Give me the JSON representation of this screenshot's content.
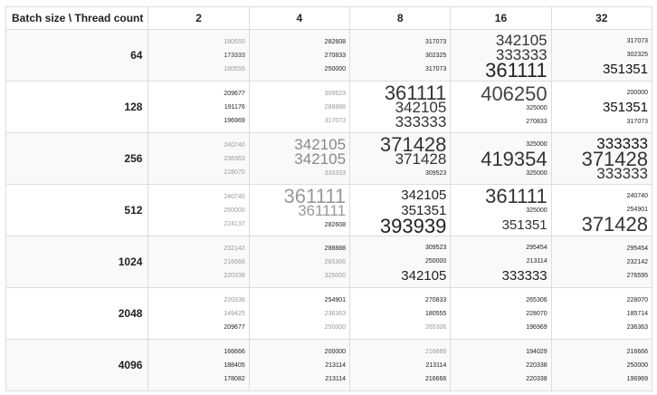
{
  "header": {
    "corner": "Batch size \\ Thread count",
    "columns": [
      "2",
      "4",
      "8",
      "16",
      "32"
    ]
  },
  "rows": [
    {
      "label": "64",
      "cells": [
        [
          {
            "v": "180555",
            "size": "xs",
            "color": "#999999"
          },
          {
            "v": "173333",
            "size": "xs",
            "color": "#333333"
          },
          {
            "v": "180555",
            "size": "xs",
            "color": "#999999"
          }
        ],
        [
          {
            "v": "282608",
            "size": "xs",
            "color": "#222222"
          },
          {
            "v": "270833",
            "size": "xs",
            "color": "#222222"
          },
          {
            "v": "250000",
            "size": "xs",
            "color": "#222222"
          }
        ],
        [
          {
            "v": "317073",
            "size": "xs",
            "color": "#222222"
          },
          {
            "v": "302325",
            "size": "xs",
            "color": "#222222"
          },
          {
            "v": "317073",
            "size": "xs",
            "color": "#222222"
          }
        ],
        [
          {
            "v": "342105",
            "size": "l",
            "color": "#333333"
          },
          {
            "v": "333333",
            "size": "l",
            "color": "#333333"
          },
          {
            "v": "361111",
            "size": "xl",
            "color": "#222222"
          }
        ],
        [
          {
            "v": "317073",
            "size": "xs",
            "color": "#222222"
          },
          {
            "v": "302325",
            "size": "xs",
            "color": "#222222"
          },
          {
            "v": "351351",
            "size": "m",
            "color": "#111111"
          }
        ]
      ]
    },
    {
      "label": "128",
      "cells": [
        [
          {
            "v": "209677",
            "size": "xs",
            "color": "#222222"
          },
          {
            "v": "191176",
            "size": "xs",
            "color": "#222222"
          },
          {
            "v": "196969",
            "size": "xs",
            "color": "#222222"
          }
        ],
        [
          {
            "v": "309523",
            "size": "xs",
            "color": "#999999"
          },
          {
            "v": "288888",
            "size": "xs",
            "color": "#999999"
          },
          {
            "v": "317073",
            "size": "xs",
            "color": "#999999"
          }
        ],
        [
          {
            "v": "361111",
            "size": "xl",
            "color": "#333333"
          },
          {
            "v": "342105",
            "size": "l",
            "color": "#333333"
          },
          {
            "v": "333333",
            "size": "l",
            "color": "#333333"
          }
        ],
        [
          {
            "v": "406250",
            "size": "xl",
            "color": "#444444"
          },
          {
            "v": "325000",
            "size": "xs",
            "color": "#222222"
          },
          {
            "v": "270833",
            "size": "xs",
            "color": "#222222"
          }
        ],
        [
          {
            "v": "200000",
            "size": "xs",
            "color": "#222222"
          },
          {
            "v": "351351",
            "size": "m",
            "color": "#111111"
          },
          {
            "v": "317073",
            "size": "xs",
            "color": "#222222"
          }
        ]
      ]
    },
    {
      "label": "256",
      "cells": [
        [
          {
            "v": "240740",
            "size": "xs",
            "color": "#999999"
          },
          {
            "v": "236363",
            "size": "xs",
            "color": "#999999"
          },
          {
            "v": "228070",
            "size": "xs",
            "color": "#999999"
          }
        ],
        [
          {
            "v": "342105",
            "size": "l",
            "color": "#888888"
          },
          {
            "v": "342105",
            "size": "l",
            "color": "#888888"
          },
          {
            "v": "333333",
            "size": "xs",
            "color": "#999999"
          }
        ],
        [
          {
            "v": "371428",
            "size": "xl",
            "color": "#333333"
          },
          {
            "v": "371428",
            "size": "l",
            "color": "#333333"
          },
          {
            "v": "309523",
            "size": "xs",
            "color": "#222222"
          }
        ],
        [
          {
            "v": "325000",
            "size": "xs",
            "color": "#222222"
          },
          {
            "v": "419354",
            "size": "xl",
            "color": "#333333"
          },
          {
            "v": "325000",
            "size": "xs",
            "color": "#222222"
          }
        ],
        [
          {
            "v": "333333",
            "size": "l",
            "color": "#111111"
          },
          {
            "v": "371428",
            "size": "xl",
            "color": "#333333"
          },
          {
            "v": "333333",
            "size": "l",
            "color": "#333333"
          }
        ]
      ]
    },
    {
      "label": "512",
      "cells": [
        [
          {
            "v": "240740",
            "size": "xs",
            "color": "#999999"
          },
          {
            "v": "250000",
            "size": "xs",
            "color": "#999999"
          },
          {
            "v": "224137",
            "size": "xs",
            "color": "#999999"
          }
        ],
        [
          {
            "v": "361111",
            "size": "xl",
            "color": "#999999"
          },
          {
            "v": "361111",
            "size": "l",
            "color": "#999999"
          },
          {
            "v": "282608",
            "size": "xs",
            "color": "#222222"
          }
        ],
        [
          {
            "v": "342105",
            "size": "m",
            "color": "#222222"
          },
          {
            "v": "351351",
            "size": "m",
            "color": "#222222"
          },
          {
            "v": "393939",
            "size": "xl",
            "color": "#222222"
          }
        ],
        [
          {
            "v": "361111",
            "size": "xl",
            "color": "#333333"
          },
          {
            "v": "325000",
            "size": "xs",
            "color": "#222222"
          },
          {
            "v": "351351",
            "size": "m",
            "color": "#333333"
          }
        ],
        [
          {
            "v": "240740",
            "size": "xs",
            "color": "#222222"
          },
          {
            "v": "254901",
            "size": "xs",
            "color": "#222222"
          },
          {
            "v": "371428",
            "size": "xl",
            "color": "#333333"
          }
        ]
      ]
    },
    {
      "label": "1024",
      "cells": [
        [
          {
            "v": "232142",
            "size": "xs",
            "color": "#999999"
          },
          {
            "v": "216666",
            "size": "xs",
            "color": "#999999"
          },
          {
            "v": "220338",
            "size": "xs",
            "color": "#999999"
          }
        ],
        [
          {
            "v": "288888",
            "size": "xs",
            "color": "#222222"
          },
          {
            "v": "265306",
            "size": "xs",
            "color": "#999999"
          },
          {
            "v": "325000",
            "size": "xs",
            "color": "#999999"
          }
        ],
        [
          {
            "v": "309523",
            "size": "xs",
            "color": "#222222"
          },
          {
            "v": "250000",
            "size": "xs",
            "color": "#222222"
          },
          {
            "v": "342105",
            "size": "m",
            "color": "#222222"
          }
        ],
        [
          {
            "v": "295454",
            "size": "xs",
            "color": "#222222"
          },
          {
            "v": "213114",
            "size": "xs",
            "color": "#222222"
          },
          {
            "v": "333333",
            "size": "m",
            "color": "#222222"
          }
        ],
        [
          {
            "v": "295454",
            "size": "xs",
            "color": "#222222"
          },
          {
            "v": "232142",
            "size": "xs",
            "color": "#222222"
          },
          {
            "v": "276595",
            "size": "xs",
            "color": "#222222"
          }
        ]
      ]
    },
    {
      "label": "2048",
      "cells": [
        [
          {
            "v": "220338",
            "size": "xs",
            "color": "#999999"
          },
          {
            "v": "149425",
            "size": "xs",
            "color": "#999999"
          },
          {
            "v": "209677",
            "size": "xs",
            "color": "#222222"
          }
        ],
        [
          {
            "v": "254901",
            "size": "xs",
            "color": "#222222"
          },
          {
            "v": "236363",
            "size": "xs",
            "color": "#999999"
          },
          {
            "v": "250000",
            "size": "xs",
            "color": "#999999"
          }
        ],
        [
          {
            "v": "270833",
            "size": "xs",
            "color": "#222222"
          },
          {
            "v": "180555",
            "size": "xs",
            "color": "#222222"
          },
          {
            "v": "265306",
            "size": "xs",
            "color": "#999999"
          }
        ],
        [
          {
            "v": "265306",
            "size": "xs",
            "color": "#222222"
          },
          {
            "v": "228070",
            "size": "xs",
            "color": "#222222"
          },
          {
            "v": "196969",
            "size": "xs",
            "color": "#222222"
          }
        ],
        [
          {
            "v": "228070",
            "size": "xs",
            "color": "#222222"
          },
          {
            "v": "185714",
            "size": "xs",
            "color": "#222222"
          },
          {
            "v": "236363",
            "size": "xs",
            "color": "#222222"
          }
        ]
      ]
    },
    {
      "label": "4096",
      "cells": [
        [
          {
            "v": "166666",
            "size": "xs",
            "color": "#222222"
          },
          {
            "v": "188405",
            "size": "xs",
            "color": "#222222"
          },
          {
            "v": "178082",
            "size": "xs",
            "color": "#222222"
          }
        ],
        [
          {
            "v": "200000",
            "size": "xs",
            "color": "#222222"
          },
          {
            "v": "213114",
            "size": "xs",
            "color": "#222222"
          },
          {
            "v": "213114",
            "size": "xs",
            "color": "#222222"
          }
        ],
        [
          {
            "v": "216666",
            "size": "xs",
            "color": "#999999"
          },
          {
            "v": "213114",
            "size": "xs",
            "color": "#222222"
          },
          {
            "v": "216666",
            "size": "xs",
            "color": "#222222"
          }
        ],
        [
          {
            "v": "194029",
            "size": "xs",
            "color": "#222222"
          },
          {
            "v": "220338",
            "size": "xs",
            "color": "#222222"
          },
          {
            "v": "220338",
            "size": "xs",
            "color": "#222222"
          }
        ],
        [
          {
            "v": "216666",
            "size": "xs",
            "color": "#222222"
          },
          {
            "v": "250000",
            "size": "xs",
            "color": "#222222"
          },
          {
            "v": "196969",
            "size": "xs",
            "color": "#222222"
          }
        ]
      ]
    }
  ]
}
